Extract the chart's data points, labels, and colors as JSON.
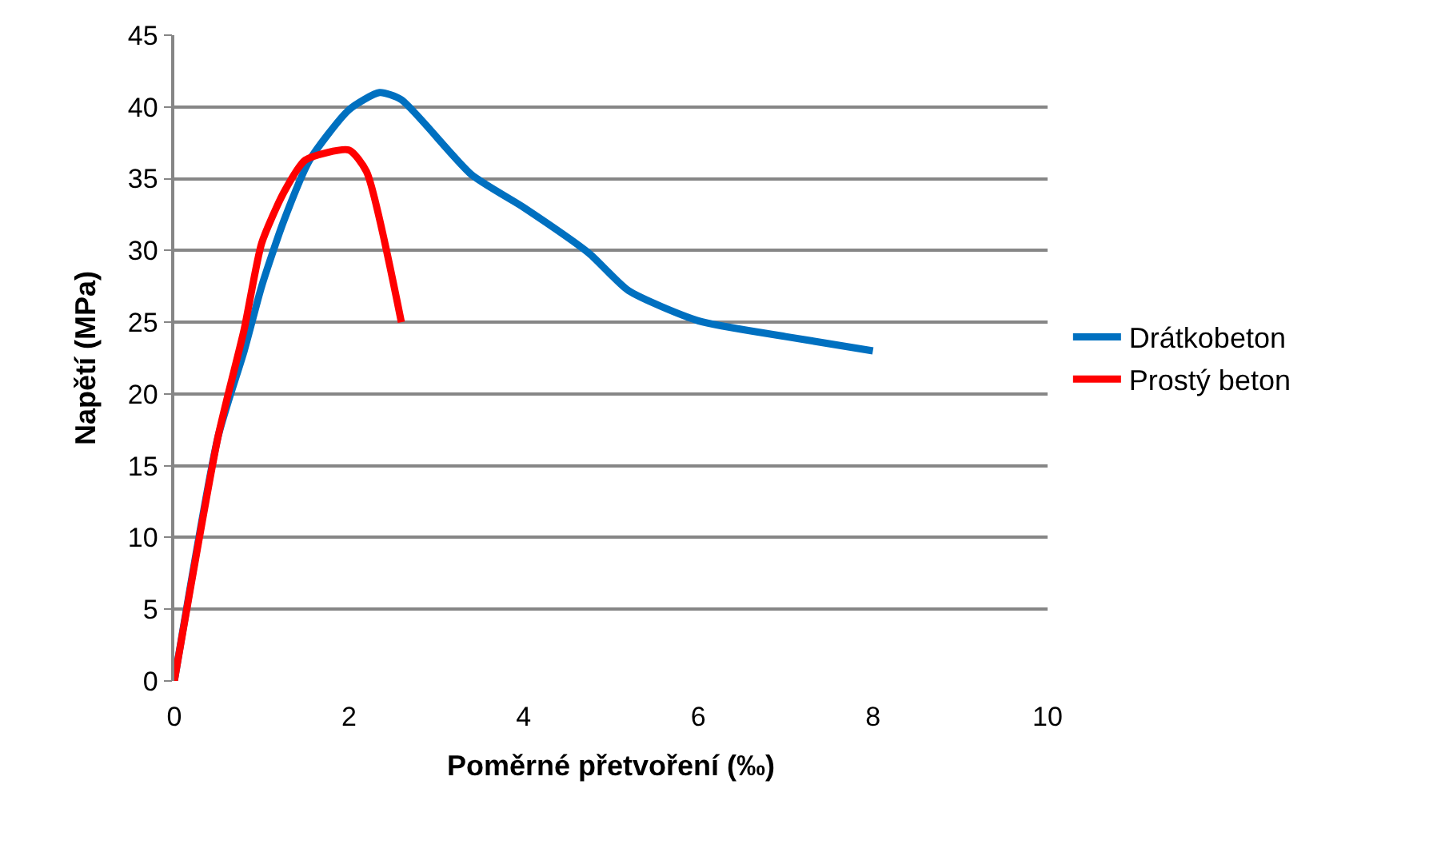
{
  "chart_data": {
    "type": "line",
    "xlabel": "Poměrné přetvoření (‰)",
    "ylabel": "Napětí (MPa)",
    "xlim": [
      0,
      10
    ],
    "xticks": [
      0,
      2,
      4,
      6,
      8,
      10
    ],
    "ylim": [
      0,
      45
    ],
    "yticks": [
      0,
      5,
      10,
      15,
      20,
      25,
      30,
      35,
      40,
      45
    ],
    "grid": "y",
    "legend": "right",
    "marker": "none",
    "line_style": "solid",
    "series": [
      {
        "name": "Drátkobeton",
        "color": "#0070c0",
        "x": [
          0,
          0.5,
          0.8,
          1,
          1.25,
          1.55,
          2,
          2.35,
          2.6,
          3.4,
          4,
          4.75,
          5.2,
          6,
          7,
          8
        ],
        "values": [
          0,
          17,
          23,
          27.5,
          32,
          36.3,
          39.8,
          41,
          40.5,
          35.3,
          33,
          29.8,
          27.2,
          25.1,
          24,
          23
        ]
      },
      {
        "name": "Prostý beton",
        "color": "#ff0000",
        "x": [
          0,
          0.5,
          0.8,
          1,
          1.25,
          1.5,
          2,
          2.2,
          2.6
        ],
        "values": [
          0,
          17,
          24.5,
          30.5,
          34,
          36.3,
          37,
          35.5,
          25
        ]
      }
    ]
  }
}
